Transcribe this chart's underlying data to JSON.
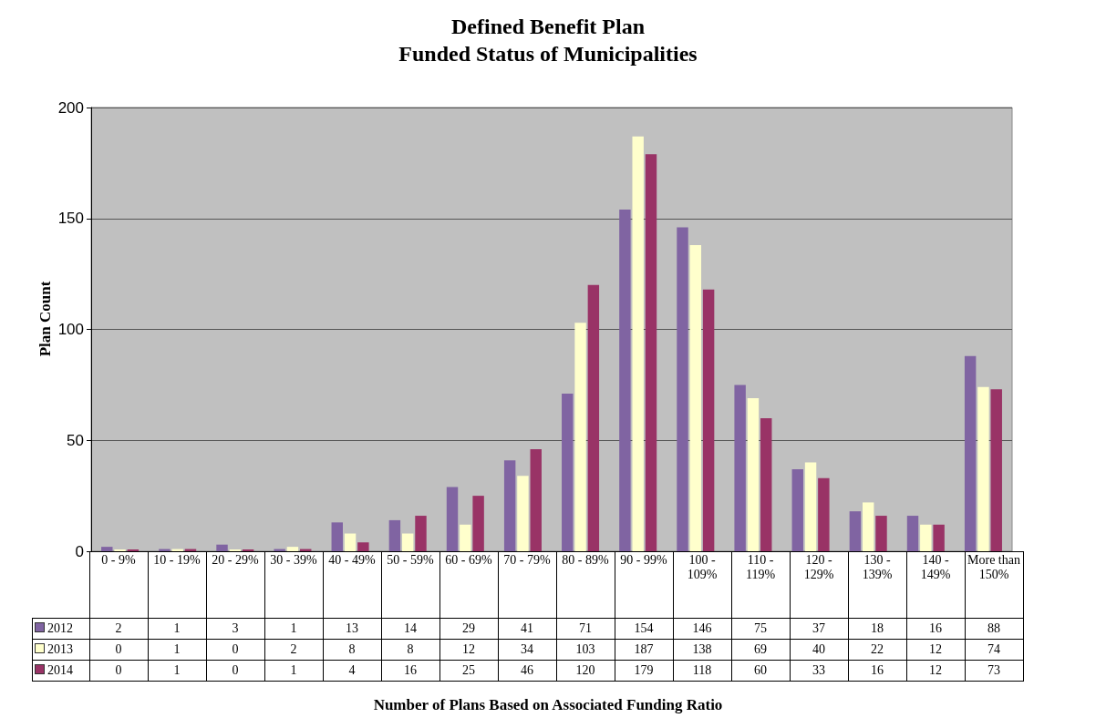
{
  "chart_data": {
    "type": "bar",
    "title": "Defined Benefit Plan\nFunded Status of Municipalities",
    "annotations": [
      "Number of Plans Based on Associated Funding Ratio"
    ],
    "ylabel": "Plan Count",
    "categories": [
      "0 - 9%",
      "10 - 19%",
      "20 - 29%",
      "30 - 39%",
      "40 - 49%",
      "50 - 59%",
      "60 - 69%",
      "70 - 79%",
      "80 - 89%",
      "90 - 99%",
      "100 - 109%",
      "110 - 119%",
      "120 - 129%",
      "130 - 139%",
      "140 - 149%",
      "More than 150%"
    ],
    "series": [
      {
        "name": "2012",
        "color": "#8064a2",
        "values": [
          2,
          1,
          3,
          1,
          13,
          14,
          29,
          41,
          71,
          154,
          146,
          75,
          37,
          18,
          16,
          88
        ]
      },
      {
        "name": "2013",
        "color": "#ffffcc",
        "values": [
          0,
          1,
          0,
          2,
          8,
          8,
          12,
          34,
          103,
          187,
          138,
          69,
          40,
          22,
          12,
          74
        ]
      },
      {
        "name": "2014",
        "color": "#993366",
        "values": [
          0,
          1,
          0,
          1,
          4,
          16,
          25,
          46,
          120,
          179,
          118,
          60,
          33,
          16,
          12,
          73
        ]
      }
    ],
    "ylim": [
      0,
      200
    ],
    "yticks": [
      0,
      50,
      100,
      150,
      200
    ],
    "grid": "y",
    "legend": "bottom",
    "data_labels": true
  }
}
